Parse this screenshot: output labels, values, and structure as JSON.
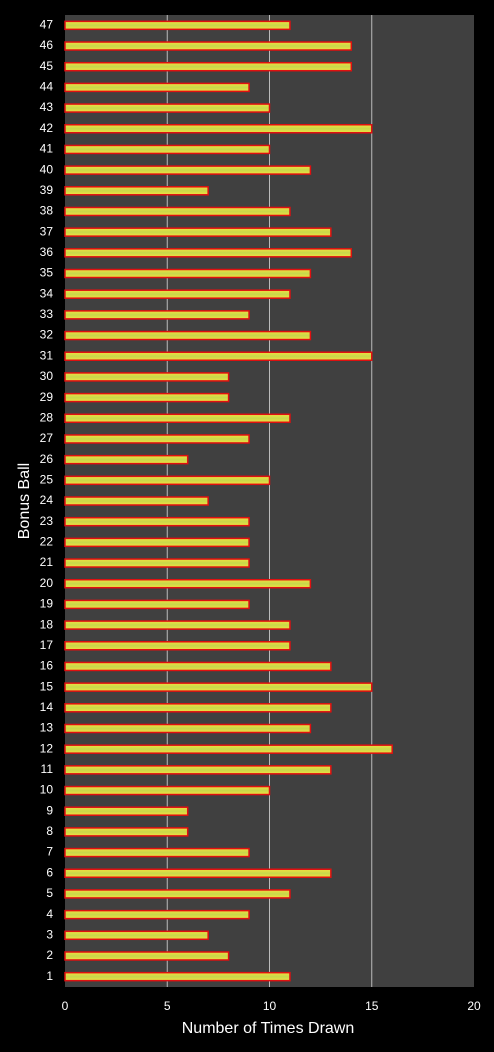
{
  "chart_data": {
    "type": "barh",
    "xlabel": "Number of Times Drawn",
    "ylabel": "Bonus Ball",
    "categories": [
      "1",
      "2",
      "3",
      "4",
      "5",
      "6",
      "7",
      "8",
      "9",
      "10",
      "11",
      "12",
      "13",
      "14",
      "15",
      "16",
      "17",
      "18",
      "19",
      "20",
      "21",
      "22",
      "23",
      "24",
      "25",
      "26",
      "27",
      "28",
      "29",
      "30",
      "31",
      "32",
      "33",
      "34",
      "35",
      "36",
      "37",
      "38",
      "39",
      "40",
      "41",
      "42",
      "43",
      "44",
      "45",
      "46",
      "47"
    ],
    "values": [
      11,
      8,
      7,
      9,
      11,
      13,
      9,
      6,
      6,
      10,
      13,
      16,
      12,
      13,
      15,
      13,
      11,
      11,
      9,
      12,
      9,
      9,
      9,
      7,
      10,
      6,
      9,
      11,
      8,
      8,
      15,
      12,
      9,
      11,
      12,
      14,
      13,
      11,
      7,
      12,
      10,
      15,
      10,
      9,
      14,
      14,
      11
    ],
    "color": "#c8d84a",
    "edgecolor": "#e01010",
    "xlim": [
      0,
      20
    ],
    "xticks": [
      0,
      5,
      10,
      15,
      20
    ],
    "grid": true
  }
}
